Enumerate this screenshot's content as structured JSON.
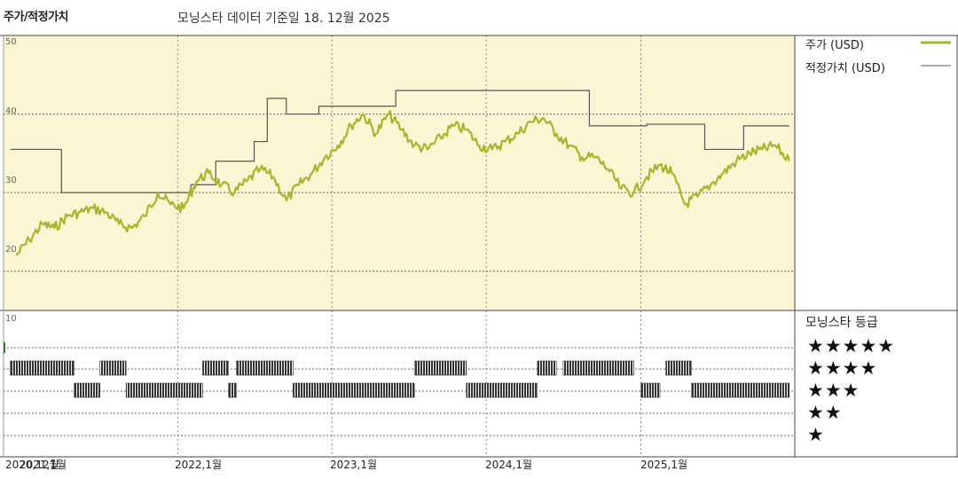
{
  "header": {
    "title": "주가/적정가치",
    "subtitle": "모닝스타 데이터 기준일 18. 12월 2025"
  },
  "legend": {
    "price": "주가 (USD)",
    "fair_value": "적정가치 (USD)",
    "rating_title": "모닝스타 등급"
  },
  "stars": [
    "★★★★★",
    "★★★★",
    "★★★",
    "★★",
    "★"
  ],
  "y_ticks": [
    "50",
    "40",
    "30",
    "20",
    "10"
  ],
  "x_ticks": [
    "2020,12월",
    "2021,1월",
    "2022,1월",
    "2023,1월",
    "2024,1월",
    "2025,1월"
  ],
  "colors": {
    "price": "#aab32a",
    "fair_value": "#555555",
    "plot_bg": "#faf6d4",
    "bars": "#333333"
  },
  "chart_data": {
    "type": "line",
    "title": "주가/적정가치",
    "x_range": [
      "2020-12",
      "2025-12-18"
    ],
    "ylim": [
      15,
      50
    ],
    "grid": true,
    "legend_position": "right",
    "series": [
      {
        "name": "주가 (USD)",
        "color": "#aab32a",
        "points": [
          [
            "2020-12-15",
            22.0
          ],
          [
            "2021-01-15",
            24.0
          ],
          [
            "2021-02-15",
            26.0
          ],
          [
            "2021-03-15",
            25.5
          ],
          [
            "2021-04-15",
            27.0
          ],
          [
            "2021-05-15",
            27.5
          ],
          [
            "2021-06-15",
            28.0
          ],
          [
            "2021-07-15",
            27.5
          ],
          [
            "2021-08-15",
            26.0
          ],
          [
            "2021-09-15",
            25.5
          ],
          [
            "2021-10-15",
            27.0
          ],
          [
            "2021-11-15",
            30.0
          ],
          [
            "2021-12-15",
            28.5
          ],
          [
            "2022-01-15",
            28.0
          ],
          [
            "2022-02-15",
            31.5
          ],
          [
            "2022-03-15",
            32.5
          ],
          [
            "2022-04-15",
            31.0
          ],
          [
            "2022-05-15",
            30.0
          ],
          [
            "2022-06-15",
            31.5
          ],
          [
            "2022-07-15",
            33.0
          ],
          [
            "2022-08-15",
            32.0
          ],
          [
            "2022-09-15",
            29.0
          ],
          [
            "2022-10-15",
            31.0
          ],
          [
            "2022-11-15",
            32.5
          ],
          [
            "2022-12-15",
            34.5
          ],
          [
            "2023-01-15",
            36.0
          ],
          [
            "2023-02-15",
            38.5
          ],
          [
            "2023-03-15",
            40.0
          ],
          [
            "2023-04-15",
            37.5
          ],
          [
            "2023-05-15",
            40.0
          ],
          [
            "2023-06-15",
            38.0
          ],
          [
            "2023-07-15",
            36.0
          ],
          [
            "2023-08-15",
            35.5
          ],
          [
            "2023-09-15",
            37.0
          ],
          [
            "2023-10-15",
            38.5
          ],
          [
            "2023-11-15",
            38.0
          ],
          [
            "2023-12-15",
            36.0
          ],
          [
            "2024-01-15",
            35.5
          ],
          [
            "2024-02-15",
            36.5
          ],
          [
            "2024-03-15",
            37.5
          ],
          [
            "2024-04-15",
            39.0
          ],
          [
            "2024-05-15",
            39.5
          ],
          [
            "2024-06-15",
            37.5
          ],
          [
            "2024-07-15",
            36.0
          ],
          [
            "2024-08-15",
            34.5
          ],
          [
            "2024-09-15",
            34.5
          ],
          [
            "2024-10-15",
            33.0
          ],
          [
            "2024-11-15",
            30.5
          ],
          [
            "2024-12-15",
            30.0
          ],
          [
            "2025-01-15",
            32.0
          ],
          [
            "2025-02-15",
            33.5
          ],
          [
            "2025-03-15",
            32.5
          ],
          [
            "2025-04-15",
            28.5
          ],
          [
            "2025-05-15",
            29.5
          ],
          [
            "2025-06-15",
            31.0
          ],
          [
            "2025-07-15",
            32.5
          ],
          [
            "2025-08-15",
            34.0
          ],
          [
            "2025-09-15",
            35.0
          ],
          [
            "2025-10-15",
            35.5
          ],
          [
            "2025-11-15",
            36.0
          ],
          [
            "2025-12-18",
            34.0
          ]
        ]
      },
      {
        "name": "적정가치 (USD)",
        "color": "#555555",
        "step": true,
        "points": [
          [
            "2020-12-01",
            35.5
          ],
          [
            "2021-04-01",
            30.0
          ],
          [
            "2022-02-01",
            31.0
          ],
          [
            "2022-04-01",
            34.0
          ],
          [
            "2022-07-01",
            36.5
          ],
          [
            "2022-08-01",
            42.0
          ],
          [
            "2022-09-15",
            40.0
          ],
          [
            "2022-12-01",
            41.0
          ],
          [
            "2023-06-01",
            43.0
          ],
          [
            "2024-09-01",
            38.5
          ],
          [
            "2025-01-01",
            38.5
          ],
          [
            "2025-01-15",
            38.7
          ],
          [
            "2025-06-01",
            35.5
          ],
          [
            "2025-09-01",
            38.5
          ],
          [
            "2025-12-18",
            38.5
          ]
        ]
      }
    ],
    "rating_timeline": [
      {
        "from": "2020-12-01",
        "to": "2021-05-01",
        "stars": 4
      },
      {
        "from": "2021-05-01",
        "to": "2021-07-01",
        "stars": 3
      },
      {
        "from": "2021-07-01",
        "to": "2021-09-01",
        "stars": 4
      },
      {
        "from": "2021-09-01",
        "to": "2022-03-01",
        "stars": 3
      },
      {
        "from": "2022-03-01",
        "to": "2022-05-01",
        "stars": 4
      },
      {
        "from": "2022-05-01",
        "to": "2022-05-20",
        "stars": 3
      },
      {
        "from": "2022-05-20",
        "to": "2022-10-01",
        "stars": 4
      },
      {
        "from": "2022-10-01",
        "to": "2023-07-15",
        "stars": 3
      },
      {
        "from": "2023-07-15",
        "to": "2023-11-15",
        "stars": 4
      },
      {
        "from": "2023-11-15",
        "to": "2024-05-01",
        "stars": 3
      },
      {
        "from": "2024-05-01",
        "to": "2024-06-15",
        "stars": 4
      },
      {
        "from": "2024-07-01",
        "to": "2024-11-15",
        "stars": 4
      },
      {
        "from": "2024-11-15",
        "to": "2024-12-15",
        "stars": 4
      },
      {
        "from": "2025-01-01",
        "to": "2025-02-15",
        "stars": 3
      },
      {
        "from": "2025-03-01",
        "to": "2025-05-01",
        "stars": 4
      },
      {
        "from": "2025-05-01",
        "to": "2025-12-18",
        "stars": 3
      }
    ]
  }
}
